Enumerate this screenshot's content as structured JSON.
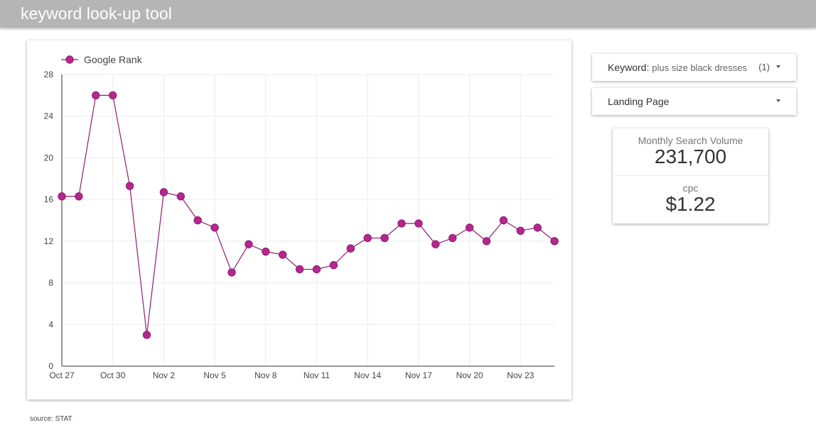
{
  "header": {
    "title": "keyword look-up tool"
  },
  "filters": {
    "keyword": {
      "label": "Keyword:",
      "value": "plus size black dresses",
      "count": "(1)"
    },
    "landing_page": {
      "label": "Landing Page"
    }
  },
  "kpis": {
    "monthly_search_volume": {
      "label": "Monthly Search Volume",
      "value": "231,700"
    },
    "cpc": {
      "label": "cpc",
      "value": "$1.22"
    }
  },
  "footer": {
    "source": "source: STAT"
  },
  "colors": {
    "series": "#b5268f",
    "series_stroke": "#8e1d70",
    "grid": "#ebebeb",
    "axis": "#777777"
  },
  "chart_data": {
    "type": "line",
    "title": "",
    "legend": [
      "Google Rank"
    ],
    "legend_position": "top-left",
    "xlabel": "",
    "ylabel": "",
    "ylim": [
      0,
      28
    ],
    "yticks": [
      0,
      4,
      8,
      12,
      16,
      20,
      24,
      28
    ],
    "xtick_labels": [
      "Oct 27",
      "Oct 30",
      "Nov 2",
      "Nov 5",
      "Nov 8",
      "Nov 11",
      "Nov 14",
      "Nov 17",
      "Nov 20",
      "Nov 23"
    ],
    "grid": true,
    "x": [
      "Oct 27",
      "Oct 28",
      "Oct 29",
      "Oct 30",
      "Oct 31",
      "Nov 1",
      "Nov 2",
      "Nov 3",
      "Nov 4",
      "Nov 5",
      "Nov 6",
      "Nov 7",
      "Nov 8",
      "Nov 9",
      "Nov 10",
      "Nov 11",
      "Nov 12",
      "Nov 13",
      "Nov 14",
      "Nov 15",
      "Nov 16",
      "Nov 17",
      "Nov 18",
      "Nov 19",
      "Nov 20",
      "Nov 21",
      "Nov 22",
      "Nov 23",
      "Nov 24",
      "Nov 25"
    ],
    "series": [
      {
        "name": "Google Rank",
        "values": [
          16.3,
          16.3,
          26,
          26,
          17.3,
          3,
          16.7,
          16.3,
          14,
          13.3,
          9,
          11.7,
          11,
          10.7,
          9.3,
          9.3,
          9.7,
          11.3,
          12.3,
          12.3,
          13.7,
          13.7,
          11.7,
          12.3,
          13.3,
          12,
          14,
          13,
          13.3,
          12
        ]
      }
    ]
  }
}
